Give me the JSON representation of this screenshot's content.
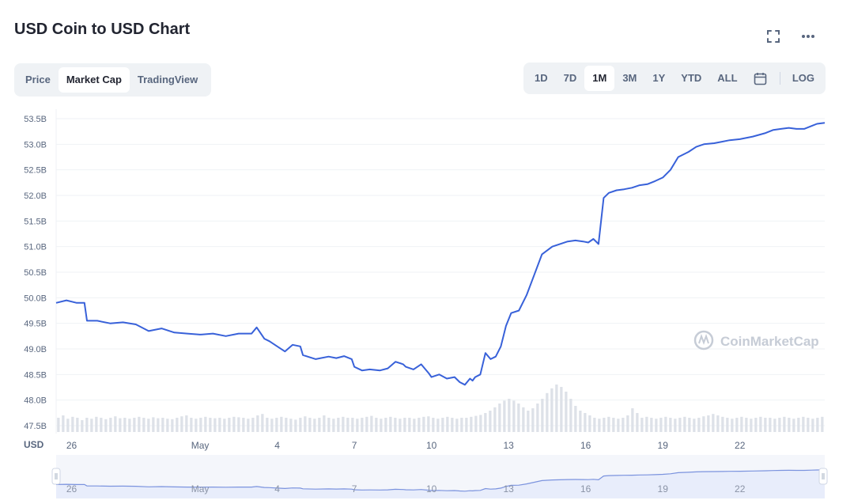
{
  "header": {
    "title": "USD Coin to USD Chart"
  },
  "icons": {
    "fullscreen": "expand-icon",
    "more": "more-horizontal-icon",
    "calendar": "calendar-icon"
  },
  "view_tabs": [
    {
      "label": "Price",
      "active": false
    },
    {
      "label": "Market Cap",
      "active": true
    },
    {
      "label": "TradingView",
      "active": false
    }
  ],
  "range_tabs": [
    {
      "label": "1D",
      "active": false
    },
    {
      "label": "7D",
      "active": false
    },
    {
      "label": "1M",
      "active": true
    },
    {
      "label": "3M",
      "active": false
    },
    {
      "label": "1Y",
      "active": false
    },
    {
      "label": "YTD",
      "active": false
    },
    {
      "label": "ALL",
      "active": false
    }
  ],
  "log_label": "LOG",
  "watermark": "CoinMarketCap",
  "colors": {
    "line": "#3861d9",
    "grid": "#eff2f5",
    "volume": "#dde1e8",
    "navigator_fill": "#e8edfb",
    "navigator_line": "#7b93de"
  },
  "chart_data": {
    "type": "line",
    "unit_label": "USD",
    "ylim": [
      47.5,
      53.5
    ],
    "xlim": [
      25.4,
      55.3
    ],
    "yticks": [
      "53.5B",
      "53.0B",
      "52.5B",
      "52.0B",
      "51.5B",
      "51.0B",
      "50.5B",
      "50.0B",
      "49.5B",
      "49.0B",
      "48.5B",
      "48.0B",
      "47.5B"
    ],
    "yticks_values": [
      53.5,
      53.0,
      52.5,
      52.0,
      51.5,
      51.0,
      50.5,
      50.0,
      49.5,
      49.0,
      48.5,
      48.0,
      47.5
    ],
    "xticks": [
      {
        "label": "26",
        "x": 26
      },
      {
        "label": "May",
        "x": 31
      },
      {
        "label": "4",
        "x": 34
      },
      {
        "label": "7",
        "x": 37
      },
      {
        "label": "10",
        "x": 40
      },
      {
        "label": "13",
        "x": 43
      },
      {
        "label": "16",
        "x": 46
      },
      {
        "label": "19",
        "x": 49
      },
      {
        "label": "22",
        "x": 52
      }
    ],
    "series": [
      {
        "x": [
          25.4,
          25.8,
          26.2,
          26.5,
          26.6,
          27.0,
          27.5,
          28.0,
          28.5,
          29.0,
          29.5,
          30.0,
          30.5,
          31.0,
          31.5,
          32.0,
          32.5,
          33.0,
          33.2,
          33.5,
          33.7,
          34.0,
          34.3,
          34.6,
          34.9,
          35.0,
          35.5,
          36.0,
          36.3,
          36.6,
          36.9,
          37.0,
          37.3,
          37.6,
          38.0,
          38.3,
          38.6,
          38.9,
          39.0,
          39.3,
          39.6,
          39.9,
          40.0,
          40.3,
          40.6,
          40.9,
          41.1,
          41.3,
          41.5,
          41.6,
          41.7,
          41.9,
          42.1,
          42.3,
          42.5,
          42.7,
          42.9,
          43.1,
          43.4,
          43.7,
          44.0,
          44.3,
          44.7,
          45.0,
          45.3,
          45.6,
          45.9,
          46.1,
          46.3,
          46.5,
          46.7,
          46.9,
          47.2,
          47.5,
          47.8,
          48.1,
          48.4,
          48.7,
          49.0,
          49.3,
          49.6,
          50.0,
          50.3,
          50.6,
          51.0,
          51.3,
          51.6,
          52.0,
          52.5,
          53.0,
          53.3,
          53.6,
          53.9,
          54.2,
          54.5,
          54.8,
          55.0,
          55.3
        ],
        "values": [
          49.9,
          49.95,
          49.9,
          49.9,
          49.55,
          49.55,
          49.5,
          49.52,
          49.48,
          49.35,
          49.4,
          49.32,
          49.3,
          49.28,
          49.3,
          49.25,
          49.3,
          49.3,
          49.42,
          49.2,
          49.15,
          49.05,
          48.95,
          49.08,
          49.05,
          48.88,
          48.8,
          48.85,
          48.82,
          48.86,
          48.8,
          48.65,
          48.58,
          48.6,
          48.58,
          48.62,
          48.75,
          48.7,
          48.65,
          48.6,
          48.7,
          48.52,
          48.45,
          48.5,
          48.42,
          48.45,
          48.35,
          48.3,
          48.42,
          48.38,
          48.45,
          48.5,
          48.92,
          48.8,
          48.85,
          49.05,
          49.45,
          49.7,
          49.75,
          50.05,
          50.45,
          50.85,
          51.0,
          51.05,
          51.1,
          51.12,
          51.1,
          51.08,
          51.15,
          51.05,
          51.95,
          52.05,
          52.1,
          52.12,
          52.15,
          52.2,
          52.22,
          52.28,
          52.35,
          52.5,
          52.75,
          52.85,
          52.95,
          53.0,
          53.02,
          53.05,
          53.08,
          53.1,
          53.15,
          53.22,
          53.28,
          53.3,
          53.32,
          53.3,
          53.3,
          53.36,
          53.4,
          53.42
        ]
      }
    ],
    "volume": [
      0.3,
      0.35,
      0.28,
      0.32,
      0.3,
      0.25,
      0.3,
      0.28,
      0.32,
      0.3,
      0.27,
      0.3,
      0.33,
      0.29,
      0.3,
      0.28,
      0.3,
      0.32,
      0.3,
      0.28,
      0.31,
      0.29,
      0.3,
      0.28,
      0.27,
      0.3,
      0.33,
      0.35,
      0.3,
      0.28,
      0.3,
      0.32,
      0.3,
      0.29,
      0.3,
      0.28,
      0.3,
      0.32,
      0.31,
      0.3,
      0.28,
      0.3,
      0.35,
      0.38,
      0.3,
      0.28,
      0.3,
      0.32,
      0.3,
      0.28,
      0.26,
      0.3,
      0.33,
      0.3,
      0.28,
      0.3,
      0.35,
      0.3,
      0.28,
      0.3,
      0.32,
      0.3,
      0.3,
      0.28,
      0.3,
      0.32,
      0.34,
      0.3,
      0.28,
      0.3,
      0.32,
      0.3,
      0.28,
      0.3,
      0.3,
      0.28,
      0.3,
      0.32,
      0.33,
      0.3,
      0.28,
      0.3,
      0.32,
      0.3,
      0.28,
      0.3,
      0.3,
      0.32,
      0.34,
      0.36,
      0.4,
      0.45,
      0.52,
      0.6,
      0.66,
      0.7,
      0.66,
      0.6,
      0.52,
      0.45,
      0.5,
      0.6,
      0.7,
      0.82,
      0.92,
      1.0,
      0.95,
      0.85,
      0.7,
      0.55,
      0.45,
      0.4,
      0.35,
      0.3,
      0.28,
      0.3,
      0.32,
      0.3,
      0.28,
      0.3,
      0.35,
      0.5,
      0.4,
      0.3,
      0.32,
      0.3,
      0.28,
      0.3,
      0.32,
      0.3,
      0.28,
      0.3,
      0.32,
      0.3,
      0.28,
      0.3,
      0.33,
      0.35,
      0.38,
      0.35,
      0.32,
      0.3,
      0.28,
      0.3,
      0.32,
      0.3,
      0.28,
      0.3,
      0.32,
      0.3,
      0.3,
      0.28,
      0.3,
      0.32,
      0.3,
      0.28,
      0.3,
      0.32,
      0.3,
      0.28,
      0.3,
      0.32
    ],
    "grid": true,
    "legend": "none"
  }
}
